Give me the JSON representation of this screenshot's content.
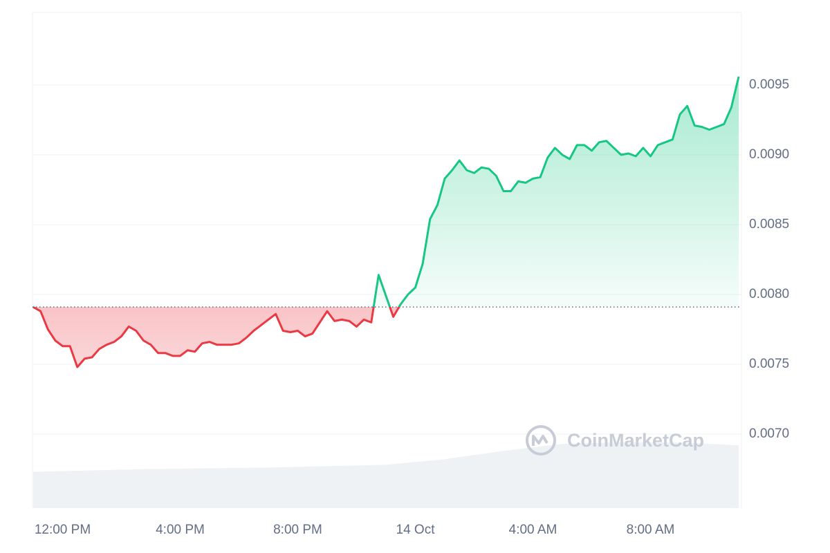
{
  "chart_data": {
    "type": "line",
    "x": [
      -1,
      -0.75,
      -0.5,
      -0.25,
      0,
      0.25,
      0.5,
      0.75,
      1,
      1.25,
      1.5,
      1.75,
      2,
      2.25,
      2.5,
      2.75,
      3,
      3.25,
      3.5,
      3.75,
      4,
      4.25,
      4.5,
      4.75,
      5,
      5.25,
      5.5,
      5.75,
      6,
      6.25,
      6.5,
      6.75,
      7,
      7.25,
      7.5,
      7.75,
      8,
      8.25,
      8.5,
      8.75,
      9,
      9.25,
      9.5,
      9.75,
      10,
      10.25,
      10.5,
      10.75,
      11,
      11.25,
      11.5,
      11.75,
      12,
      12.25,
      12.5,
      12.75,
      13,
      13.25,
      13.5,
      13.75,
      14,
      14.25,
      14.5,
      14.75,
      15,
      15.25,
      15.5,
      15.75,
      16,
      16.25,
      16.5,
      16.75,
      17,
      17.25,
      17.5,
      17.75,
      18,
      18.25,
      18.5,
      18.75,
      19,
      19.25,
      19.5,
      19.75,
      20,
      20.25,
      20.5,
      20.75,
      21,
      21.25,
      21.5,
      21.75,
      22,
      22.25,
      22.5,
      22.75,
      23
    ],
    "series": [
      {
        "color": "#16c784",
        "color_below": "#ea3943",
        "values": [
          0.00791,
          0.00788,
          0.00775,
          0.00767,
          0.00763,
          0.00763,
          0.00748,
          0.00754,
          0.00755,
          0.00761,
          0.00764,
          0.00766,
          0.0077,
          0.00777,
          0.00774,
          0.00767,
          0.00764,
          0.00758,
          0.00758,
          0.00756,
          0.00756,
          0.0076,
          0.00759,
          0.00765,
          0.00766,
          0.00764,
          0.00764,
          0.00764,
          0.00765,
          0.00769,
          0.00774,
          0.00778,
          0.00782,
          0.00786,
          0.00774,
          0.00773,
          0.00774,
          0.0077,
          0.00772,
          0.0078,
          0.00788,
          0.00781,
          0.00782,
          0.00781,
          0.00777,
          0.00782,
          0.0078,
          0.00814,
          0.00799,
          0.00784,
          0.00793,
          0.008,
          0.00805,
          0.00822,
          0.00854,
          0.00864,
          0.00883,
          0.00889,
          0.00896,
          0.00889,
          0.00887,
          0.00891,
          0.0089,
          0.00885,
          0.00874,
          0.00874,
          0.00881,
          0.0088,
          0.00883,
          0.00884,
          0.00898,
          0.00905,
          0.009,
          0.00897,
          0.00907,
          0.00907,
          0.00903,
          0.00909,
          0.0091,
          0.00905,
          0.009,
          0.00901,
          0.00899,
          0.00905,
          0.00899,
          0.00907,
          0.00909,
          0.00911,
          0.00929,
          0.00935,
          0.00921,
          0.0092,
          0.00918,
          0.0092,
          0.00922,
          0.00934,
          0.00956
        ]
      }
    ],
    "baseline": 0.00791,
    "volume": {
      "color": "#eff2f5",
      "x": [
        -1,
        3,
        7,
        11,
        13,
        15,
        17,
        19,
        21,
        23
      ],
      "values": [
        0.00673,
        0.00675,
        0.00676,
        0.00678,
        0.00682,
        0.00688,
        0.00693,
        0.00694,
        0.00694,
        0.00692
      ]
    },
    "xlim": [
      -1,
      23
    ],
    "xticks": [
      {
        "value": 0,
        "label": "12:00 PM"
      },
      {
        "value": 4,
        "label": "4:00 PM"
      },
      {
        "value": 8,
        "label": "8:00 PM"
      },
      {
        "value": 12,
        "label": "14 Oct"
      },
      {
        "value": 16,
        "label": "4:00 AM"
      },
      {
        "value": 20,
        "label": "8:00 AM"
      }
    ],
    "ylim": [
      0.00647,
      0.01002
    ],
    "yticks": [
      {
        "value": 0.007,
        "label": "0.0070"
      },
      0.0075,
      {
        "value": 0.008,
        "label": "0.0080"
      },
      0.0085,
      {
        "value": 0.009,
        "label": "0.0090"
      },
      0.0095
    ],
    "grid": true,
    "watermark": "CoinMarketCap"
  }
}
